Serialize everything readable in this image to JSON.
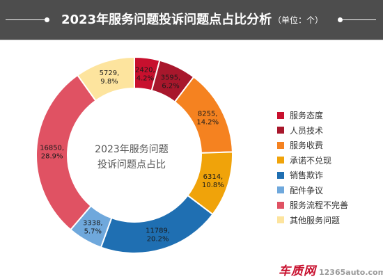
{
  "header": {
    "title": "2023年服务问题投诉问题点占比分析",
    "unit": "（单位：个）"
  },
  "watermark": {
    "logo_text": "车质网",
    "url": "12365auto.com"
  },
  "chart_data": {
    "type": "pie",
    "donut": true,
    "title": "2023年服务问题投诉问题点占比分析",
    "subtitle": "（单位：个）",
    "center_text": [
      "2023年服务问题",
      "投诉问题点占比"
    ],
    "legend_position": "right",
    "categories": [
      "服务态度",
      "人员技术",
      "服务收费",
      "承诺不兑现",
      "销售欺诈",
      "配件争议",
      "服务流程不完善",
      "其他服务问题"
    ],
    "values": [
      2420,
      3595,
      8255,
      6314,
      11789,
      3338,
      16850,
      5729
    ],
    "value_labels": [
      "2420",
      "3595",
      "8255",
      "6314",
      "11789",
      "3338",
      "16850",
      "5729"
    ],
    "percent_labels": [
      "4.2%",
      "6.2%",
      "14.2%",
      "10.8%",
      "20.2%",
      "5.7%",
      "28.9%",
      "9.8%"
    ],
    "colors": [
      "#c8102e",
      "#a8172c",
      "#f58220",
      "#f0a30a",
      "#1f6fb2",
      "#6fa8dc",
      "#e05263",
      "#fde49e"
    ]
  }
}
